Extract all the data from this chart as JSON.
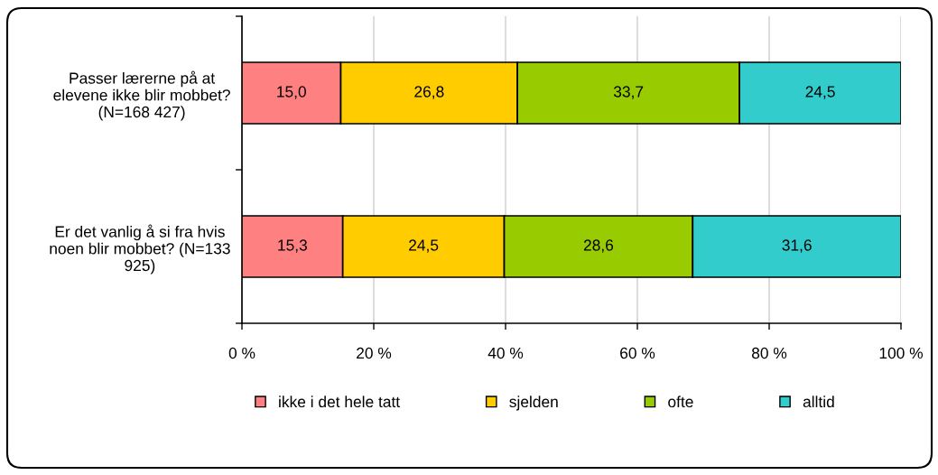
{
  "chart_data": {
    "type": "bar",
    "orientation": "horizontal",
    "stacked": true,
    "categories": [
      "Passer lærerne på at\nelevene ikke blir mobbet?\n(N=168 427)",
      "Er det vanlig å si fra hvis\nnoen blir mobbet? (N=133\n925)"
    ],
    "series": [
      {
        "name": "ikke i det hele tatt",
        "color": "#ff8080",
        "values": [
          15.0,
          15.3
        ],
        "value_labels": [
          "15,0",
          "15,3"
        ]
      },
      {
        "name": "sjelden",
        "color": "#ffcc00",
        "values": [
          26.8,
          24.5
        ],
        "value_labels": [
          "26,8",
          "24,5"
        ]
      },
      {
        "name": "ofte",
        "color": "#99cc00",
        "values": [
          33.7,
          28.6
        ],
        "value_labels": [
          "33,7",
          "28,6"
        ]
      },
      {
        "name": "alltid",
        "color": "#33cccc",
        "values": [
          24.5,
          31.6
        ],
        "value_labels": [
          "24,5",
          "31,6"
        ]
      }
    ],
    "xlim": [
      0,
      100
    ],
    "xticks": [
      {
        "value": 0,
        "label": "0 %"
      },
      {
        "value": 20,
        "label": "20 %"
      },
      {
        "value": 40,
        "label": "40 %"
      },
      {
        "value": 60,
        "label": "60 %"
      },
      {
        "value": 80,
        "label": "80 %"
      },
      {
        "value": 100,
        "label": "100 %"
      }
    ],
    "grid": "x",
    "legend": "bottom"
  }
}
